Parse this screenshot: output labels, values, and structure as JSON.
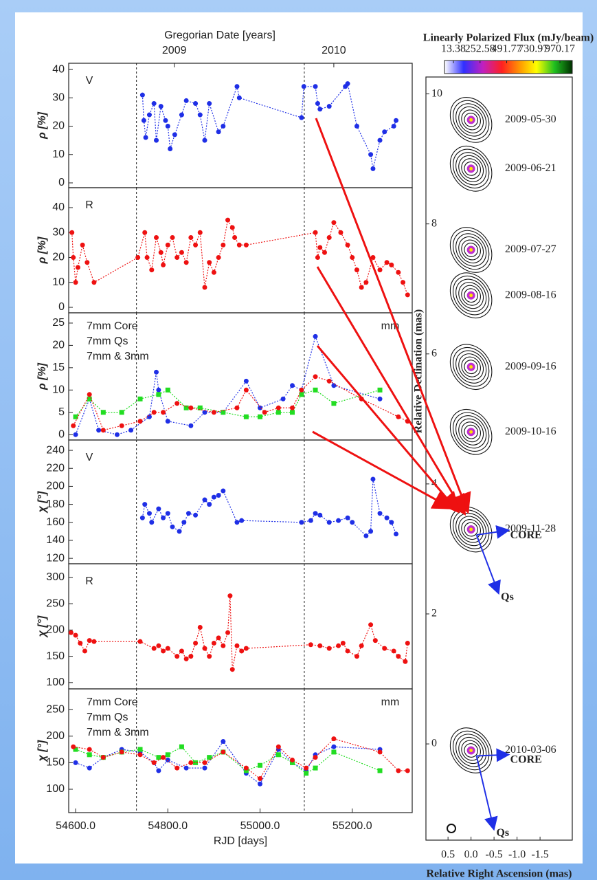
{
  "chart_data": [
    {
      "type": "line",
      "label": "V",
      "label_color": "#1f2fe6",
      "ylabel": "ρ [%]",
      "top_label": "Gregorian Date [years]",
      "x2ticks": [
        {
          "value": 54814,
          "label": "2009"
        },
        {
          "value": 55160,
          "label": "2010"
        }
      ],
      "xlim": [
        54585,
        55330
      ],
      "ylim": [
        -1.7,
        42.2
      ],
      "yticks": [
        0,
        10,
        20,
        30,
        40
      ],
      "vlines": [
        54732,
        55096
      ],
      "series": [
        {
          "color": "#1f2fe6",
          "marker": "circle",
          "x": [
            54745,
            54748,
            54752,
            54760,
            54770,
            54775,
            54785,
            54795,
            54800,
            54805,
            54815,
            54830,
            54840,
            54860,
            54870,
            54880,
            54890,
            54910,
            54920,
            54950,
            54955,
            55090,
            55095,
            55120,
            55125,
            55130,
            55150,
            55185,
            55190,
            55210,
            55240,
            55245,
            55260,
            55270,
            55290,
            55295
          ],
          "values": [
            31,
            22,
            16,
            24,
            28,
            15,
            27,
            22,
            20,
            12,
            17,
            24,
            29,
            28,
            24,
            15,
            28,
            18,
            20,
            34,
            30,
            23,
            34,
            34,
            28,
            26,
            27,
            34,
            35,
            20,
            10,
            5,
            15,
            18,
            20,
            22
          ]
        }
      ]
    },
    {
      "type": "line",
      "label": "R",
      "label_color": "#ee1111",
      "ylabel": "ρ [%]",
      "xlim": [
        54585,
        55330
      ],
      "ylim": [
        -2.2,
        48
      ],
      "yticks": [
        0,
        10,
        20,
        30,
        40
      ],
      "vlines": [
        54732,
        55096
      ],
      "series": [
        {
          "color": "#ee1111",
          "marker": "circle",
          "x": [
            54592,
            54595,
            54600,
            54605,
            54615,
            54625,
            54640,
            54735,
            54750,
            54755,
            54765,
            54775,
            54785,
            54790,
            54800,
            54810,
            54820,
            54830,
            54840,
            54850,
            54860,
            54870,
            54880,
            54890,
            54900,
            54910,
            54920,
            54930,
            54940,
            54945,
            54955,
            54970,
            55120,
            55125,
            55130,
            55140,
            55150,
            55160,
            55175,
            55190,
            55200,
            55210,
            55220,
            55230,
            55245,
            55260,
            55275,
            55285,
            55300,
            55310,
            55320
          ],
          "values": [
            30,
            20,
            10,
            16,
            25,
            18,
            10,
            20,
            30,
            20,
            15,
            28,
            22,
            17,
            25,
            28,
            20,
            22,
            18,
            28,
            25,
            30,
            8,
            18,
            14,
            20,
            25,
            35,
            32,
            28,
            25,
            25,
            30,
            20,
            24,
            22,
            28,
            34,
            30,
            25,
            20,
            15,
            8,
            10,
            20,
            15,
            18,
            17,
            14,
            10,
            5
          ]
        }
      ]
    },
    {
      "type": "line",
      "label": "mm",
      "label_color": "#111111",
      "ylabel": "ρ [%]",
      "xlim": [
        54585,
        55330
      ],
      "ylim": [
        -1.2,
        27.3
      ],
      "yticks": [
        0,
        5,
        10,
        15,
        20,
        25
      ],
      "vlines": [
        54732,
        55096
      ],
      "series": [
        {
          "name": "7mm Core",
          "color": "#1f2fe6",
          "marker": "circle",
          "x": [
            54600,
            54630,
            54650,
            54690,
            54720,
            54760,
            54775,
            54780,
            54800,
            54850,
            54880,
            54920,
            54970,
            55000,
            55050,
            55070,
            55090,
            55120,
            55160,
            55260
          ],
          "values": [
            0,
            8,
            1,
            0,
            1,
            4,
            14,
            10,
            3,
            2,
            5,
            5,
            12,
            6,
            8,
            11,
            10,
            22,
            11,
            8
          ]
        },
        {
          "name": "7mm Qs",
          "color": "#22dd22",
          "marker": "square",
          "x": [
            54600,
            54630,
            54660,
            54700,
            54740,
            54780,
            54800,
            54840,
            54870,
            54920,
            54970,
            55000,
            55040,
            55070,
            55090,
            55120,
            55160,
            55260
          ],
          "values": [
            4,
            8,
            5,
            5,
            8,
            9,
            10,
            6,
            6,
            5,
            4,
            4,
            5,
            5,
            9,
            10,
            7,
            10
          ]
        },
        {
          "name": "7mm & 3mm",
          "color": "#ee1111",
          "marker": "circle",
          "x": [
            54595,
            54630,
            54660,
            54700,
            54740,
            54770,
            54790,
            54820,
            54850,
            54900,
            54950,
            54970,
            55010,
            55040,
            55070,
            55090,
            55120,
            55150,
            55220,
            55300,
            55320
          ],
          "values": [
            2,
            9,
            1,
            2,
            3,
            5,
            5,
            7,
            6,
            5,
            6,
            10,
            5,
            6,
            6,
            10,
            13,
            12,
            8,
            4,
            3
          ]
        }
      ]
    },
    {
      "type": "line",
      "label": "V",
      "label_color": "#1f2fe6",
      "ylabel": "χ [°]",
      "xlim": [
        54585,
        55330
      ],
      "ylim": [
        114,
        251.5
      ],
      "yticks": [
        120,
        140,
        160,
        180,
        200,
        220,
        240
      ],
      "vlines": [
        54732,
        55096
      ],
      "series": [
        {
          "color": "#1f2fe6",
          "marker": "circle",
          "x": [
            54745,
            54750,
            54760,
            54765,
            54780,
            54790,
            54800,
            54810,
            54825,
            54835,
            54845,
            54860,
            54880,
            54890,
            54900,
            54910,
            54920,
            54950,
            54960,
            55090,
            55110,
            55120,
            55130,
            55150,
            55170,
            55190,
            55200,
            55230,
            55240,
            55245,
            55260,
            55275,
            55285,
            55295
          ],
          "values": [
            165,
            180,
            170,
            160,
            175,
            165,
            170,
            155,
            150,
            160,
            170,
            168,
            185,
            180,
            188,
            190,
            195,
            160,
            162,
            160,
            162,
            170,
            168,
            160,
            162,
            165,
            160,
            145,
            150,
            208,
            170,
            165,
            160,
            147
          ]
        }
      ]
    },
    {
      "type": "line",
      "label": "R",
      "label_color": "#ee1111",
      "ylabel": "χ [°]",
      "xlim": [
        54585,
        55330
      ],
      "ylim": [
        88,
        326
      ],
      "yticks": [
        100,
        150,
        200,
        250,
        300
      ],
      "vlines": [
        54732,
        55096
      ],
      "series": [
        {
          "color": "#ee1111",
          "marker": "circle",
          "x": [
            54590,
            54600,
            54610,
            54620,
            54630,
            54640,
            54740,
            54770,
            54780,
            54790,
            54800,
            54820,
            54830,
            54840,
            54850,
            54860,
            54870,
            54880,
            54890,
            54900,
            54910,
            54920,
            54930,
            54935,
            54940,
            54950,
            54960,
            54970,
            55110,
            55130,
            55150,
            55170,
            55180,
            55190,
            55210,
            55220,
            55240,
            55250,
            55270,
            55290,
            55300,
            55315,
            55320
          ],
          "values": [
            195,
            190,
            175,
            160,
            180,
            178,
            178,
            165,
            170,
            160,
            165,
            150,
            160,
            145,
            150,
            175,
            205,
            165,
            150,
            175,
            185,
            170,
            195,
            265,
            125,
            170,
            160,
            165,
            172,
            170,
            165,
            170,
            175,
            160,
            150,
            170,
            210,
            180,
            165,
            160,
            150,
            140,
            175
          ]
        }
      ]
    },
    {
      "type": "line",
      "label": "mm",
      "label_color": "#111111",
      "ylabel": "χ [°]",
      "xlabel": "RJD [days]",
      "xlim": [
        54585,
        55330
      ],
      "ylim": [
        56,
        289
      ],
      "yticks": [
        100,
        150,
        200,
        250
      ],
      "vlines": [
        54732,
        55096
      ],
      "xticks": [
        {
          "value": 54600,
          "label": "54600.0"
        },
        {
          "value": 54800,
          "label": "54800.0"
        },
        {
          "value": 55000,
          "label": "55000.0"
        },
        {
          "value": 55200,
          "label": "55200.0"
        }
      ],
      "series": [
        {
          "name": "7mm Core",
          "color": "#1f2fe6",
          "marker": "circle",
          "x": [
            54600,
            54630,
            54660,
            54700,
            54740,
            54770,
            54780,
            54800,
            54840,
            54880,
            54920,
            54970,
            55000,
            55040,
            55070,
            55100,
            55120,
            55160,
            55260
          ],
          "values": [
            150,
            140,
            160,
            175,
            170,
            150,
            135,
            155,
            140,
            140,
            190,
            130,
            110,
            175,
            150,
            135,
            165,
            180,
            175
          ]
        },
        {
          "name": "7mm Qs",
          "color": "#22dd22",
          "marker": "square",
          "x": [
            54600,
            54630,
            54660,
            54700,
            54740,
            54780,
            54800,
            54830,
            54860,
            54890,
            54920,
            54970,
            55000,
            55040,
            55070,
            55100,
            55120,
            55160,
            55260
          ],
          "values": [
            175,
            165,
            160,
            170,
            175,
            160,
            165,
            180,
            150,
            160,
            170,
            135,
            145,
            165,
            150,
            130,
            140,
            170,
            135
          ]
        },
        {
          "name": "7mm & 3mm",
          "color": "#ee1111",
          "marker": "circle",
          "x": [
            54595,
            54630,
            54660,
            54700,
            54740,
            54770,
            54790,
            54820,
            54850,
            54880,
            54920,
            54970,
            55000,
            55040,
            55070,
            55100,
            55120,
            55160,
            55260,
            55300,
            55320
          ],
          "values": [
            180,
            175,
            160,
            170,
            165,
            150,
            160,
            140,
            150,
            150,
            170,
            140,
            120,
            180,
            155,
            140,
            160,
            195,
            170,
            135,
            135
          ]
        }
      ]
    },
    {
      "type": "map",
      "colorbar_title": "Linearly Polarized Flux (mJy/beam)",
      "clim": [
        -67,
        1081
      ],
      "cticks": [
        13.38,
        252.58,
        491.77,
        730.97,
        970.17
      ],
      "xlabel": "Relative Right Ascension (mas)",
      "ylabel": "Relative Declination (mas)",
      "xlim": [
        0.98,
        -2.2
      ],
      "ylim": [
        -1.48,
        10.26
      ],
      "xticks": [
        0.5,
        {
          "value": 0,
          "label": "0.0"
        },
        -0.5,
        {
          "value": -1,
          "label": "-1.0"
        },
        -1.5
      ],
      "yticks": [
        0,
        2,
        4,
        6,
        8,
        10
      ],
      "epochs": [
        {
          "date": "2009-05-30",
          "x": 0,
          "y": 9.6
        },
        {
          "date": "2009-06-21",
          "x": 0,
          "y": 8.85
        },
        {
          "date": "2009-07-27",
          "x": 0,
          "y": 7.6
        },
        {
          "date": "2009-08-16",
          "x": 0,
          "y": 6.9
        },
        {
          "date": "2009-09-16",
          "x": 0,
          "y": 5.8
        },
        {
          "date": "2009-10-16",
          "x": 0,
          "y": 4.8
        },
        {
          "date": "2009-11-28",
          "x": 0,
          "y": 3.3
        },
        {
          "date": "2010-03-06",
          "x": 0,
          "y": -0.1
        }
      ],
      "annotations": [
        {
          "text": "CORE",
          "x": -0.85,
          "y": 3.2,
          "epoch": 6
        },
        {
          "text": "Qs",
          "x": -0.65,
          "y": 2.25,
          "epoch": 6
        },
        {
          "text": "CORE",
          "x": -0.85,
          "y": -0.25,
          "epoch": 7
        },
        {
          "text": "Qs",
          "x": -0.55,
          "y": -1.38,
          "epoch": 7
        }
      ]
    }
  ]
}
